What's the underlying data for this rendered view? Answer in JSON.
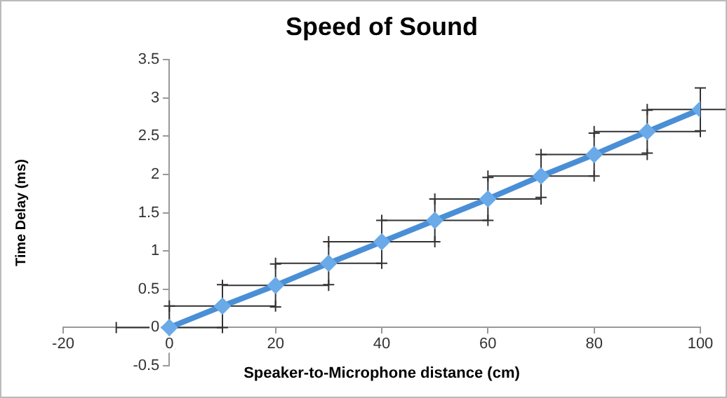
{
  "chart_data": {
    "type": "line",
    "title": "Speed of Sound",
    "xlabel": "Speaker-to-Microphone distance (cm)",
    "ylabel": "Time Delay (ms)",
    "x": [
      0,
      10,
      20,
      30,
      40,
      50,
      60,
      70,
      80,
      90,
      100
    ],
    "series": [
      {
        "color": "#4a8fd6",
        "values": [
          0,
          0.28,
          0.55,
          0.84,
          1.12,
          1.4,
          1.68,
          1.98,
          2.26,
          2.56,
          2.85
        ],
        "errors": [
          0.28,
          0.28,
          0.28,
          0.28,
          0.28,
          0.28,
          0.28,
          0.28,
          0.28,
          0.28,
          0.28
        ],
        "xerrors": [
          10,
          10,
          10,
          10,
          10,
          10,
          10,
          10,
          10,
          10,
          10
        ]
      }
    ],
    "xlim": [
      -20,
      100
    ],
    "xticks": [
      -20,
      0,
      20,
      40,
      60,
      80,
      100
    ],
    "ylim": [
      -0.5,
      3.5
    ],
    "yticks": [
      -0.5,
      0,
      0.5,
      1,
      1.5,
      2,
      2.5,
      3,
      3.5
    ],
    "grid": false,
    "legend": false,
    "marker": "diamond",
    "line_style": "solid"
  }
}
